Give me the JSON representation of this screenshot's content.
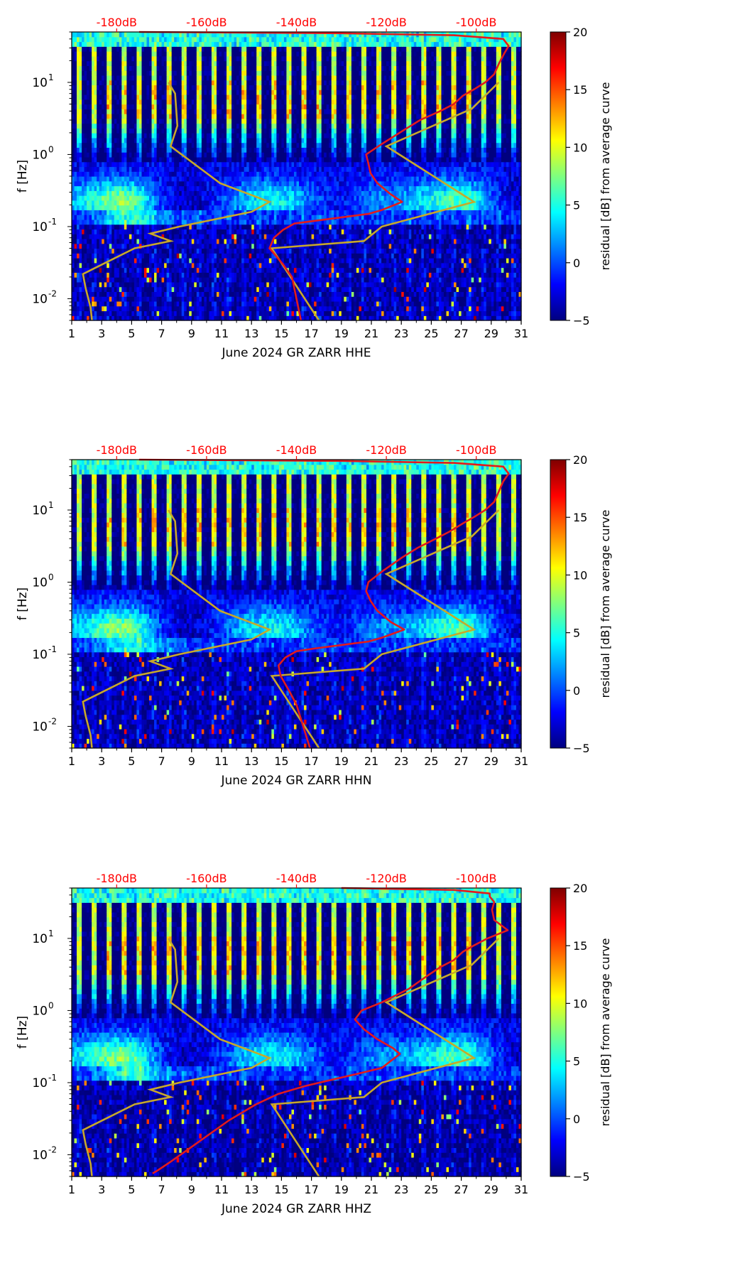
{
  "colors": {
    "jet": [
      "#00007f",
      "#0000ff",
      "#007fff",
      "#00ffff",
      "#7fff7f",
      "#ffff00",
      "#ff7f00",
      "#ff0000",
      "#7f0000"
    ],
    "power_curve": "#e31a1c",
    "nlnm_nhnm": "#c8a82a",
    "db_label": "#ff0000"
  },
  "chart_data": [
    {
      "type": "heatmap",
      "xlabel": "June 2024 GR ZARR  HHE",
      "ylabel": "f [Hz]",
      "x_ticks": [
        "1",
        "3",
        "5",
        "7",
        "9",
        "11",
        "13",
        "15",
        "17",
        "19",
        "21",
        "23",
        "25",
        "27",
        "29",
        "31"
      ],
      "xlim": [
        1,
        31
      ],
      "ylim": [
        0.005,
        50
      ],
      "y_scale": "log",
      "y_ticks": [
        {
          "label": "10",
          "exp": "-2",
          "value": 0.01
        },
        {
          "label": "10",
          "exp": "-1",
          "value": 0.1
        },
        {
          "label": "10",
          "exp": "0",
          "value": 1
        },
        {
          "label": "10",
          "exp": "1",
          "value": 10
        }
      ],
      "top_ticks": [
        "-180dB",
        "-160dB",
        "-140dB",
        "-120dB",
        "-100dB"
      ],
      "top_tick_values": [
        -180,
        -160,
        -140,
        -120,
        -100
      ],
      "top_xlim": [
        -190,
        -90
      ],
      "colorbar": {
        "label": "residual [dB] from average curve",
        "ticks": [
          "20",
          "15",
          "10",
          "5",
          "0",
          "−5"
        ],
        "range": [
          -5,
          20
        ]
      },
      "noise_models_db": [
        {
          "name": "",
          "points": [
            [
              0.005,
              -185.5
            ],
            [
              0.0075,
              -185.8
            ],
            [
              0.014,
              -186.9
            ],
            [
              0.022,
              -187.5
            ],
            [
              0.05,
              -176
            ],
            [
              0.063,
              -168
            ],
            [
              0.08,
              -172.5
            ],
            [
              0.1,
              -166
            ],
            [
              0.16,
              -150
            ],
            [
              0.22,
              -146
            ],
            [
              0.4,
              -157
            ],
            [
              1.3,
              -168
            ],
            [
              2.5,
              -166.5
            ],
            [
              7,
              -167
            ],
            [
              10,
              -168.5
            ]
          ]
        },
        {
          "name": "",
          "points": [
            [
              0.005,
              -135
            ],
            [
              0.05,
              -145.5
            ],
            [
              0.063,
              -125
            ],
            [
              0.1,
              -121
            ],
            [
              0.22,
              -100.5
            ],
            [
              1.3,
              -120
            ],
            [
              4.3,
              -101
            ],
            [
              10,
              -95
            ]
          ]
        }
      ],
      "power_curve_db": [
        [
          0.005,
          -139
        ],
        [
          0.01,
          -140
        ],
        [
          0.02,
          -141
        ],
        [
          0.03,
          -143
        ],
        [
          0.05,
          -146
        ],
        [
          0.07,
          -145
        ],
        [
          0.09,
          -143
        ],
        [
          0.11,
          -140.5
        ],
        [
          0.12,
          -136
        ],
        [
          0.15,
          -124
        ],
        [
          0.17,
          -121
        ],
        [
          0.22,
          -116.5
        ],
        [
          0.28,
          -119
        ],
        [
          0.4,
          -122
        ],
        [
          0.55,
          -123.5
        ],
        [
          0.75,
          -124
        ],
        [
          1,
          -124.5
        ],
        [
          1.4,
          -121
        ],
        [
          2.2,
          -116
        ],
        [
          3,
          -112.5
        ],
        [
          4,
          -108
        ],
        [
          5,
          -105
        ],
        [
          6.5,
          -103
        ],
        [
          8,
          -100.5
        ],
        [
          10,
          -98
        ],
        [
          13,
          -96
        ],
        [
          18,
          -95
        ],
        [
          25,
          -93.8
        ],
        [
          32,
          -92.8
        ],
        [
          40,
          -94
        ],
        [
          45,
          -105
        ],
        [
          48,
          -130
        ],
        [
          50,
          -175
        ]
      ]
    },
    {
      "type": "heatmap",
      "xlabel": "June 2024 GR ZARR  HHN",
      "ylabel": "f [Hz]",
      "x_ticks": [
        "1",
        "3",
        "5",
        "7",
        "9",
        "11",
        "13",
        "15",
        "17",
        "19",
        "21",
        "23",
        "25",
        "27",
        "29",
        "31"
      ],
      "xlim": [
        1,
        31
      ],
      "ylim": [
        0.005,
        50
      ],
      "y_scale": "log",
      "y_ticks": [
        {
          "label": "10",
          "exp": "-2",
          "value": 0.01
        },
        {
          "label": "10",
          "exp": "-1",
          "value": 0.1
        },
        {
          "label": "10",
          "exp": "0",
          "value": 1
        },
        {
          "label": "10",
          "exp": "1",
          "value": 10
        }
      ],
      "top_ticks": [
        "-180dB",
        "-160dB",
        "-140dB",
        "-120dB",
        "-100dB"
      ],
      "top_tick_values": [
        -180,
        -160,
        -140,
        -120,
        -100
      ],
      "top_xlim": [
        -190,
        -90
      ],
      "colorbar": {
        "label": "residual [dB] from average curve",
        "ticks": [
          "20",
          "15",
          "10",
          "5",
          "0",
          "−5"
        ],
        "range": [
          -5,
          20
        ]
      },
      "noise_models_db": [
        {
          "name": "",
          "points": [
            [
              0.005,
              -185.5
            ],
            [
              0.0075,
              -185.8
            ],
            [
              0.014,
              -186.9
            ],
            [
              0.022,
              -187.5
            ],
            [
              0.05,
              -176
            ],
            [
              0.063,
              -168
            ],
            [
              0.08,
              -172.5
            ],
            [
              0.1,
              -166
            ],
            [
              0.16,
              -150
            ],
            [
              0.22,
              -146
            ],
            [
              0.4,
              -157
            ],
            [
              1.3,
              -168
            ],
            [
              2.5,
              -166.5
            ],
            [
              7,
              -167
            ],
            [
              10,
              -168.5
            ]
          ]
        },
        {
          "name": "",
          "points": [
            [
              0.005,
              -135
            ],
            [
              0.05,
              -145.5
            ],
            [
              0.063,
              -125
            ],
            [
              0.1,
              -121
            ],
            [
              0.22,
              -100.5
            ],
            [
              1.3,
              -120
            ],
            [
              4.3,
              -101
            ],
            [
              10,
              -95
            ]
          ]
        }
      ],
      "power_curve_db": [
        [
          0.005,
          -137
        ],
        [
          0.01,
          -138.5
        ],
        [
          0.02,
          -140
        ],
        [
          0.03,
          -141.5
        ],
        [
          0.05,
          -143.5
        ],
        [
          0.07,
          -144
        ],
        [
          0.09,
          -142.5
        ],
        [
          0.11,
          -140
        ],
        [
          0.12,
          -136
        ],
        [
          0.15,
          -124
        ],
        [
          0.17,
          -121
        ],
        [
          0.22,
          -116
        ],
        [
          0.28,
          -119
        ],
        [
          0.4,
          -122
        ],
        [
          0.55,
          -123.5
        ],
        [
          0.75,
          -124.5
        ],
        [
          1,
          -124
        ],
        [
          1.4,
          -121
        ],
        [
          2.2,
          -116.5
        ],
        [
          3,
          -113
        ],
        [
          4,
          -109
        ],
        [
          5,
          -106
        ],
        [
          6.5,
          -103
        ],
        [
          8,
          -100.5
        ],
        [
          10,
          -98
        ],
        [
          13,
          -96
        ],
        [
          18,
          -95
        ],
        [
          25,
          -94
        ],
        [
          32,
          -92.8
        ],
        [
          40,
          -94
        ],
        [
          45,
          -105
        ],
        [
          48,
          -130
        ],
        [
          50,
          -175
        ]
      ]
    },
    {
      "type": "heatmap",
      "xlabel": "June 2024 GR ZARR  HHZ",
      "ylabel": "f [Hz]",
      "x_ticks": [
        "1",
        "3",
        "5",
        "7",
        "9",
        "11",
        "13",
        "15",
        "17",
        "19",
        "21",
        "23",
        "25",
        "27",
        "29",
        "31"
      ],
      "xlim": [
        1,
        31
      ],
      "ylim": [
        0.005,
        50
      ],
      "y_scale": "log",
      "y_ticks": [
        {
          "label": "10",
          "exp": "-2",
          "value": 0.01
        },
        {
          "label": "10",
          "exp": "-1",
          "value": 0.1
        },
        {
          "label": "10",
          "exp": "0",
          "value": 1
        },
        {
          "label": "10",
          "exp": "1",
          "value": 10
        }
      ],
      "top_ticks": [
        "-180dB",
        "-160dB",
        "-140dB",
        "-120dB",
        "-100dB"
      ],
      "top_tick_values": [
        -180,
        -160,
        -140,
        -120,
        -100
      ],
      "top_xlim": [
        -190,
        -90
      ],
      "colorbar": {
        "label": "residual [dB] from average curve",
        "ticks": [
          "20",
          "15",
          "10",
          "5",
          "0",
          "−5"
        ],
        "range": [
          -5,
          20
        ]
      },
      "noise_models_db": [
        {
          "name": "",
          "points": [
            [
              0.005,
              -185.5
            ],
            [
              0.0075,
              -185.8
            ],
            [
              0.014,
              -186.9
            ],
            [
              0.022,
              -187.5
            ],
            [
              0.05,
              -176
            ],
            [
              0.063,
              -168
            ],
            [
              0.08,
              -172.5
            ],
            [
              0.1,
              -166
            ],
            [
              0.16,
              -150
            ],
            [
              0.22,
              -146
            ],
            [
              0.4,
              -157
            ],
            [
              1.3,
              -168
            ],
            [
              2.5,
              -166.5
            ],
            [
              7,
              -167
            ],
            [
              10,
              -168.5
            ]
          ]
        },
        {
          "name": "",
          "points": [
            [
              0.005,
              -135
            ],
            [
              0.05,
              -145.5
            ],
            [
              0.063,
              -125
            ],
            [
              0.1,
              -121
            ],
            [
              0.22,
              -100.5
            ],
            [
              1.3,
              -120
            ],
            [
              4.3,
              -101
            ],
            [
              10,
              -95
            ]
          ]
        }
      ],
      "power_curve_db": [
        [
          0.0055,
          -172
        ],
        [
          0.006,
          -171
        ],
        [
          0.008,
          -168
        ],
        [
          0.012,
          -164
        ],
        [
          0.02,
          -159
        ],
        [
          0.03,
          -155
        ],
        [
          0.05,
          -149
        ],
        [
          0.07,
          -144
        ],
        [
          0.09,
          -138
        ],
        [
          0.11,
          -132
        ],
        [
          0.13,
          -127
        ],
        [
          0.16,
          -121
        ],
        [
          0.2,
          -119
        ],
        [
          0.25,
          -117
        ],
        [
          0.3,
          -118.5
        ],
        [
          0.4,
          -122
        ],
        [
          0.55,
          -125
        ],
        [
          0.75,
          -127
        ],
        [
          1,
          -125.5
        ],
        [
          1.3,
          -121
        ],
        [
          2,
          -115
        ],
        [
          3,
          -111
        ],
        [
          4,
          -108
        ],
        [
          5,
          -105
        ],
        [
          6.5,
          -103
        ],
        [
          8,
          -100.5
        ],
        [
          10,
          -97.5
        ],
        [
          13,
          -93
        ],
        [
          18,
          -96
        ],
        [
          25,
          -96.5
        ],
        [
          32,
          -96
        ],
        [
          38,
          -97
        ],
        [
          42,
          -97
        ],
        [
          47,
          -105
        ],
        [
          50,
          -130
        ]
      ]
    }
  ]
}
